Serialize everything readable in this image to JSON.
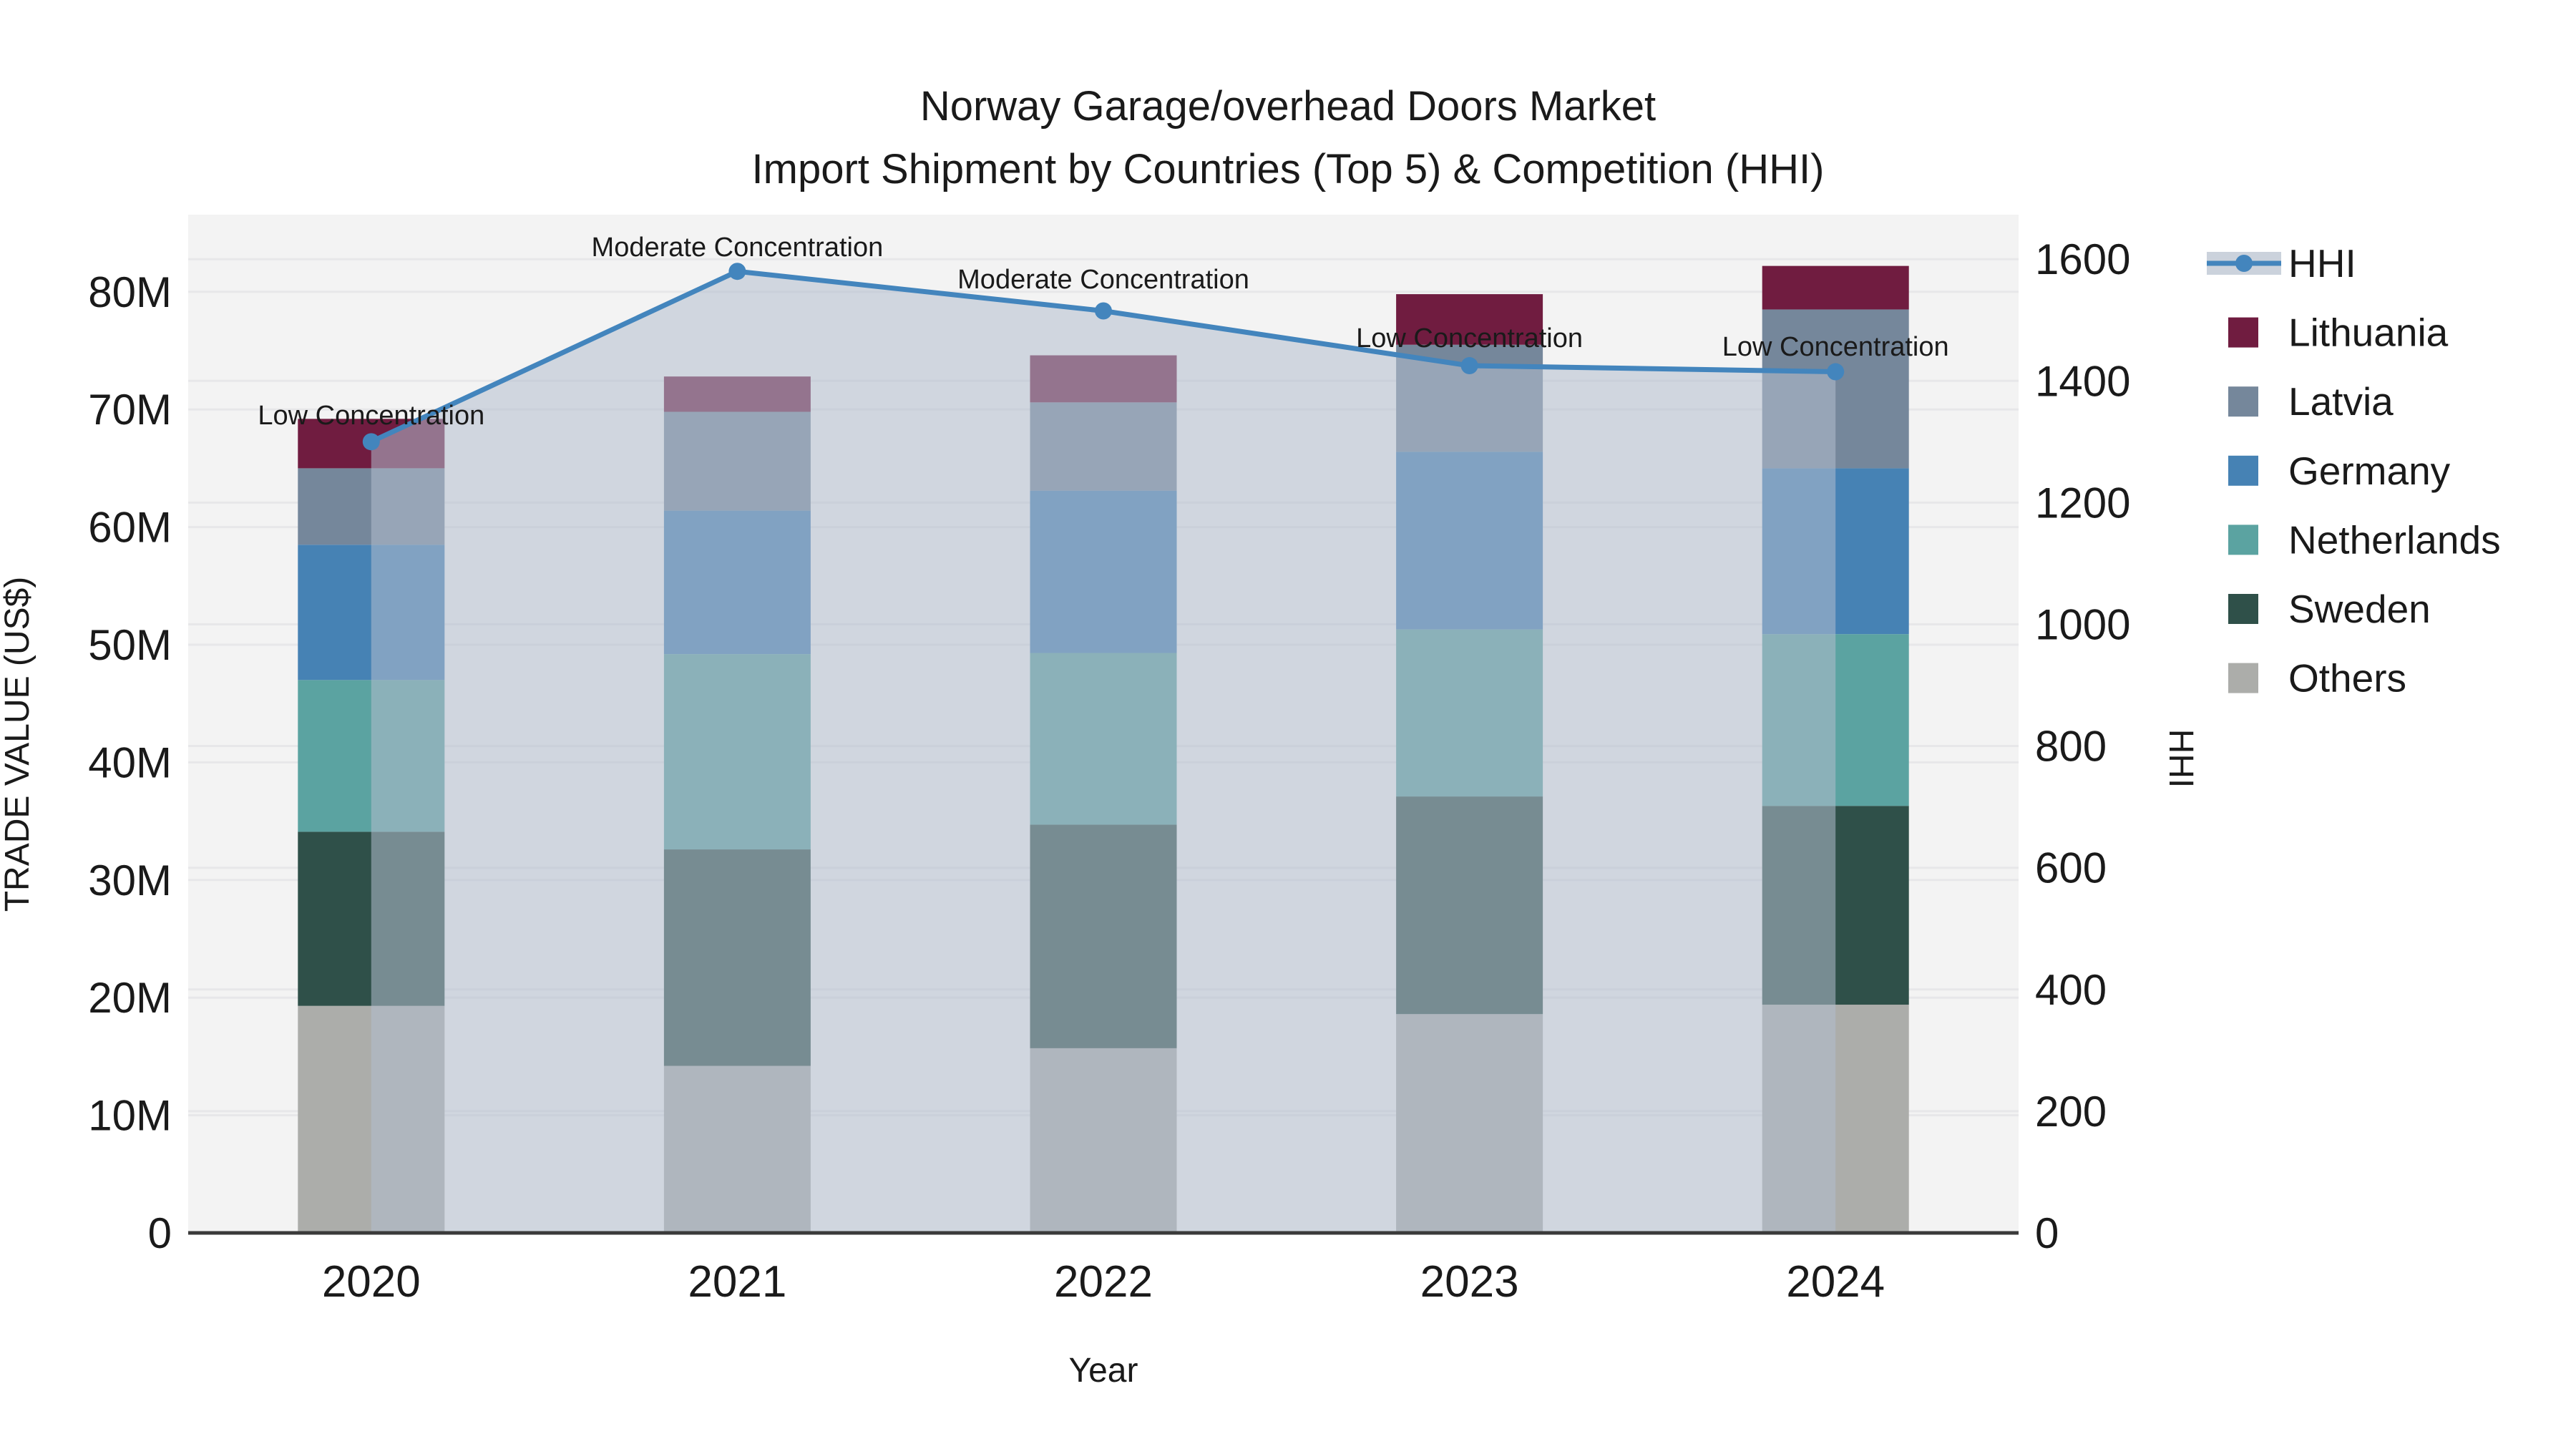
{
  "title": {
    "line1": "Norway Garage/overhead Doors Market",
    "line2": "Import Shipment by Countries (Top 5) & Competition (HHI)"
  },
  "axes": {
    "x_title": "Year",
    "y_left_title": "TRADE VALUE (US$)",
    "y_right_title": "HHI",
    "y_left_tick_labels": [
      "0",
      "10M",
      "20M",
      "30M",
      "40M",
      "50M",
      "60M",
      "70M",
      "80M"
    ],
    "y_right_tick_labels": [
      "0",
      "200",
      "400",
      "600",
      "800",
      "1000",
      "1200",
      "1400",
      "1600"
    ]
  },
  "legend": {
    "items": [
      {
        "label": "HHI",
        "type": "line",
        "color": "#4385BD",
        "band_color": "#cbd2dc"
      },
      {
        "label": "Lithuania",
        "type": "swatch",
        "color": "#701C40"
      },
      {
        "label": "Latvia",
        "type": "swatch",
        "color": "#75879B"
      },
      {
        "label": "Germany",
        "type": "swatch",
        "color": "#4682B4"
      },
      {
        "label": "Netherlands",
        "type": "swatch",
        "color": "#5BA3A1"
      },
      {
        "label": "Sweden",
        "type": "swatch",
        "color": "#2F5049"
      },
      {
        "label": "Others",
        "type": "swatch",
        "color": "#ACADAA"
      }
    ]
  },
  "chart_data": {
    "type": "bar+line",
    "title": "Norway Garage/overhead Doors Market — Import Shipment by Countries (Top 5) & Competition (HHI)",
    "categories": [
      "2020",
      "2021",
      "2022",
      "2023",
      "2024"
    ],
    "xlabel": "Year",
    "ylabel_left": "TRADE VALUE (US$)",
    "ylabel_right": "HHI",
    "ylim_left_musd": [
      0,
      86.6
    ],
    "ylim_right_hhi": [
      0,
      1673
    ],
    "grid": true,
    "legend_position": "right-outside",
    "bar_stack_bottom_to_top": [
      "Others",
      "Sweden",
      "Netherlands",
      "Germany",
      "Latvia",
      "Lithuania"
    ],
    "series": [
      {
        "name": "Others",
        "color": "#ACADAA",
        "values_musd": [
          19.3,
          14.2,
          15.7,
          18.6,
          19.4
        ]
      },
      {
        "name": "Sweden",
        "color": "#2F5049",
        "values_musd": [
          14.8,
          18.4,
          19.0,
          18.5,
          16.9
        ]
      },
      {
        "name": "Netherlands",
        "color": "#5BA3A1",
        "values_musd": [
          12.9,
          16.6,
          14.6,
          14.2,
          14.6
        ]
      },
      {
        "name": "Germany",
        "color": "#4682B4",
        "values_musd": [
          11.5,
          12.2,
          13.8,
          15.1,
          14.1
        ]
      },
      {
        "name": "Latvia",
        "color": "#75879B",
        "values_musd": [
          6.5,
          8.4,
          7.5,
          9.1,
          13.5
        ]
      },
      {
        "name": "Lithuania",
        "color": "#701C40",
        "values_musd": [
          4.2,
          3.0,
          4.0,
          4.3,
          3.7
        ]
      }
    ],
    "bar_totals_musd": [
      69.2,
      72.8,
      74.6,
      79.8,
      82.2
    ],
    "hhi_line": {
      "name": "HHI",
      "color": "#4385BD",
      "area_fill_color_rgba": "rgba(178,190,206,0.55)",
      "values": [
        1300,
        1580,
        1515,
        1425,
        1415
      ]
    },
    "annotations": [
      {
        "category": "2020",
        "text": "Low Concentration"
      },
      {
        "category": "2021",
        "text": "Moderate Concentration"
      },
      {
        "category": "2022",
        "text": "Moderate Concentration"
      },
      {
        "category": "2023",
        "text": "Low Concentration"
      },
      {
        "category": "2024",
        "text": "Low Concentration"
      }
    ],
    "colors": {
      "plot_background": "#f3f3f3",
      "gridline": "#e7e7e9",
      "axis_line": "#3a3a3a",
      "text": "#1a1a1a"
    }
  }
}
